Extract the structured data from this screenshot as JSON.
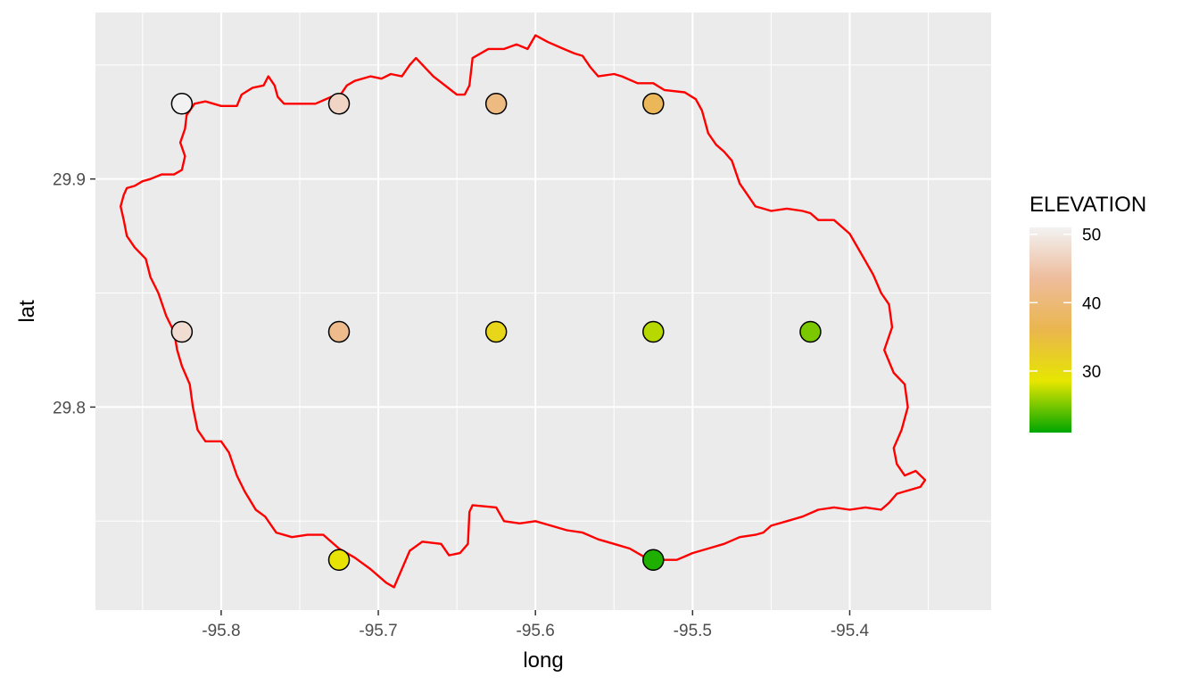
{
  "chart_data": {
    "type": "scatter",
    "title": "",
    "xlabel": "long",
    "ylabel": "lat",
    "xlim": [
      -95.88,
      -95.31
    ],
    "ylim": [
      29.711,
      29.973
    ],
    "x_ticks": [
      -95.8,
      -95.7,
      -95.6,
      -95.5,
      -95.4
    ],
    "x_tick_labels": [
      "-95.8",
      "-95.7",
      "-95.6",
      "-95.5",
      "-95.4"
    ],
    "y_ticks": [
      29.8,
      29.9
    ],
    "y_tick_labels": [
      "29.8",
      "29.9"
    ],
    "grid": true,
    "panel_background": "#ebebeb",
    "gridline_color": "#ffffff",
    "boundary_color": "#ff0000",
    "legend": {
      "title": "ELEVATION",
      "position": "right",
      "range": [
        21,
        51
      ],
      "ticks": [
        30,
        40,
        50
      ],
      "tick_labels": [
        "30",
        "40",
        "50"
      ],
      "gradient": [
        "#00a600",
        "#e6e600",
        "#eab64e",
        "#eebc9c",
        "#f2f2f2"
      ]
    },
    "points": [
      {
        "long": -95.825,
        "lat": 29.933,
        "elevation": 51
      },
      {
        "long": -95.725,
        "lat": 29.933,
        "elevation": 47
      },
      {
        "long": -95.625,
        "lat": 29.933,
        "elevation": 41
      },
      {
        "long": -95.525,
        "lat": 29.933,
        "elevation": 37
      },
      {
        "long": -95.825,
        "lat": 29.833,
        "elevation": 48
      },
      {
        "long": -95.725,
        "lat": 29.833,
        "elevation": 42
      },
      {
        "long": -95.625,
        "lat": 29.833,
        "elevation": 31
      },
      {
        "long": -95.525,
        "lat": 29.833,
        "elevation": 27
      },
      {
        "long": -95.425,
        "lat": 29.833,
        "elevation": 25
      },
      {
        "long": -95.725,
        "lat": 29.733,
        "elevation": 29
      },
      {
        "long": -95.525,
        "lat": 29.733,
        "elevation": 22
      }
    ],
    "boundary": [
      [
        -95.817,
        29.933
      ],
      [
        -95.81,
        29.934
      ],
      [
        -95.8,
        29.932
      ],
      [
        -95.79,
        29.932
      ],
      [
        -95.787,
        29.937
      ],
      [
        -95.78,
        29.94
      ],
      [
        -95.773,
        29.941
      ],
      [
        -95.77,
        29.945
      ],
      [
        -95.766,
        29.941
      ],
      [
        -95.764,
        29.936
      ],
      [
        -95.76,
        29.933
      ],
      [
        -95.74,
        29.933
      ],
      [
        -95.73,
        29.936
      ],
      [
        -95.724,
        29.937
      ],
      [
        -95.72,
        29.941
      ],
      [
        -95.715,
        29.943
      ],
      [
        -95.705,
        29.945
      ],
      [
        -95.698,
        29.944
      ],
      [
        -95.692,
        29.946
      ],
      [
        -95.685,
        29.945
      ],
      [
        -95.68,
        29.95
      ],
      [
        -95.676,
        29.953
      ],
      [
        -95.665,
        29.945
      ],
      [
        -95.65,
        29.937
      ],
      [
        -95.645,
        29.937
      ],
      [
        -95.642,
        29.941
      ],
      [
        -95.64,
        29.953
      ],
      [
        -95.63,
        29.957
      ],
      [
        -95.62,
        29.957
      ],
      [
        -95.612,
        29.959
      ],
      [
        -95.605,
        29.957
      ],
      [
        -95.6,
        29.963
      ],
      [
        -95.592,
        29.96
      ],
      [
        -95.582,
        29.957
      ],
      [
        -95.575,
        29.955
      ],
      [
        -95.57,
        29.954
      ],
      [
        -95.565,
        29.949
      ],
      [
        -95.56,
        29.945
      ],
      [
        -95.55,
        29.946
      ],
      [
        -95.545,
        29.945
      ],
      [
        -95.535,
        29.942
      ],
      [
        -95.525,
        29.942
      ],
      [
        -95.518,
        29.939
      ],
      [
        -95.505,
        29.938
      ],
      [
        -95.498,
        29.935
      ],
      [
        -95.494,
        29.93
      ],
      [
        -95.49,
        29.92
      ],
      [
        -95.485,
        29.915
      ],
      [
        -95.48,
        29.912
      ],
      [
        -95.475,
        29.908
      ],
      [
        -95.47,
        29.898
      ],
      [
        -95.465,
        29.893
      ],
      [
        -95.46,
        29.888
      ],
      [
        -95.455,
        29.887
      ],
      [
        -95.45,
        29.886
      ],
      [
        -95.44,
        29.887
      ],
      [
        -95.43,
        29.886
      ],
      [
        -95.425,
        29.885
      ],
      [
        -95.42,
        29.882
      ],
      [
        -95.41,
        29.882
      ],
      [
        -95.4,
        29.876
      ],
      [
        -95.395,
        29.87
      ],
      [
        -95.39,
        29.864
      ],
      [
        -95.385,
        29.858
      ],
      [
        -95.38,
        29.85
      ],
      [
        -95.375,
        29.845
      ],
      [
        -95.373,
        29.835
      ],
      [
        -95.378,
        29.825
      ],
      [
        -95.372,
        29.815
      ],
      [
        -95.365,
        29.81
      ],
      [
        -95.363,
        29.8
      ],
      [
        -95.367,
        29.79
      ],
      [
        -95.372,
        29.782
      ],
      [
        -95.37,
        29.775
      ],
      [
        -95.365,
        29.77
      ],
      [
        -95.358,
        29.772
      ],
      [
        -95.352,
        29.768
      ],
      [
        -95.355,
        29.765
      ],
      [
        -95.365,
        29.763
      ],
      [
        -95.37,
        29.762
      ],
      [
        -95.375,
        29.758
      ],
      [
        -95.38,
        29.755
      ],
      [
        -95.39,
        29.756
      ],
      [
        -95.4,
        29.755
      ],
      [
        -95.41,
        29.756
      ],
      [
        -95.42,
        29.755
      ],
      [
        -95.43,
        29.752
      ],
      [
        -95.44,
        29.75
      ],
      [
        -95.45,
        29.748
      ],
      [
        -95.455,
        29.745
      ],
      [
        -95.46,
        29.744
      ],
      [
        -95.47,
        29.743
      ],
      [
        -95.48,
        29.74
      ],
      [
        -95.49,
        29.738
      ],
      [
        -95.5,
        29.736
      ],
      [
        -95.51,
        29.733
      ],
      [
        -95.52,
        29.733
      ],
      [
        -95.53,
        29.734
      ],
      [
        -95.54,
        29.738
      ],
      [
        -95.55,
        29.74
      ],
      [
        -95.56,
        29.742
      ],
      [
        -95.57,
        29.745
      ],
      [
        -95.58,
        29.746
      ],
      [
        -95.59,
        29.748
      ],
      [
        -95.6,
        29.75
      ],
      [
        -95.61,
        29.749
      ],
      [
        -95.62,
        29.75
      ],
      [
        -95.625,
        29.756
      ],
      [
        -95.64,
        29.757
      ],
      [
        -95.642,
        29.754
      ],
      [
        -95.643,
        29.74
      ],
      [
        -95.648,
        29.736
      ],
      [
        -95.655,
        29.735
      ],
      [
        -95.66,
        29.74
      ],
      [
        -95.672,
        29.741
      ],
      [
        -95.68,
        29.737
      ],
      [
        -95.69,
        29.721
      ],
      [
        -95.695,
        29.723
      ],
      [
        -95.705,
        29.729
      ],
      [
        -95.715,
        29.734
      ],
      [
        -95.725,
        29.738
      ],
      [
        -95.735,
        29.744
      ],
      [
        -95.745,
        29.744
      ],
      [
        -95.755,
        29.743
      ],
      [
        -95.765,
        29.745
      ],
      [
        -95.772,
        29.752
      ],
      [
        -95.778,
        29.755
      ],
      [
        -95.785,
        29.763
      ],
      [
        -95.79,
        29.77
      ],
      [
        -95.795,
        29.78
      ],
      [
        -95.8,
        29.785
      ],
      [
        -95.81,
        29.785
      ],
      [
        -95.815,
        29.79
      ],
      [
        -95.818,
        29.8
      ],
      [
        -95.82,
        29.81
      ],
      [
        -95.825,
        29.818
      ],
      [
        -95.828,
        29.825
      ],
      [
        -95.83,
        29.833
      ],
      [
        -95.835,
        29.84
      ],
      [
        -95.84,
        29.85
      ],
      [
        -95.845,
        29.857
      ],
      [
        -95.848,
        29.865
      ],
      [
        -95.855,
        29.87
      ],
      [
        -95.86,
        29.875
      ],
      [
        -95.862,
        29.882
      ],
      [
        -95.864,
        29.888
      ],
      [
        -95.862,
        29.893
      ],
      [
        -95.86,
        29.896
      ],
      [
        -95.855,
        29.897
      ],
      [
        -95.85,
        29.899
      ],
      [
        -95.845,
        29.9
      ],
      [
        -95.838,
        29.902
      ],
      [
        -95.83,
        29.902
      ],
      [
        -95.825,
        29.904
      ],
      [
        -95.823,
        29.91
      ],
      [
        -95.826,
        29.916
      ],
      [
        -95.823,
        29.922
      ],
      [
        -95.822,
        29.928
      ],
      [
        -95.817,
        29.933
      ]
    ]
  }
}
